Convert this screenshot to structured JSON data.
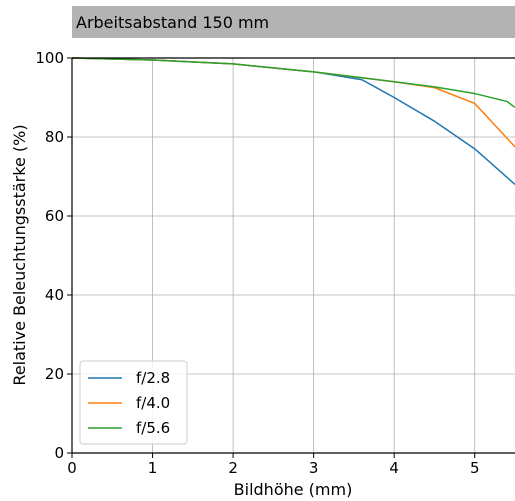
{
  "chart_data": {
    "type": "line",
    "title": "Arbeitsabstand 150 mm",
    "xlabel": "Bildhöhe (mm)",
    "ylabel": "Relative Beleuchtungsstärke (%)",
    "xlim": [
      0,
      5.5
    ],
    "ylim": [
      0,
      100
    ],
    "xticks": [
      0,
      1,
      2,
      3,
      4,
      5
    ],
    "yticks": [
      0,
      20,
      40,
      60,
      80,
      100
    ],
    "grid": true,
    "legend_position": "lower-left",
    "series": [
      {
        "name": "f/2.8",
        "color": "#1f77b4",
        "x": [
          0,
          1,
          2,
          3,
          3.6,
          4,
          4.5,
          5,
          5.5
        ],
        "y": [
          100,
          99.5,
          98.5,
          96.5,
          94.5,
          90,
          84,
          77,
          68
        ]
      },
      {
        "name": "f/4.0",
        "color": "#ff7f0e",
        "x": [
          0,
          1,
          2,
          3,
          3.6,
          4,
          4.5,
          5,
          5.5
        ],
        "y": [
          100,
          99.5,
          98.5,
          96.5,
          95,
          94,
          92.5,
          88.5,
          77.5
        ]
      },
      {
        "name": "f/5.6",
        "color": "#2ca02c",
        "x": [
          0,
          1,
          2,
          3,
          3.6,
          4,
          4.5,
          5,
          5.4,
          5.5
        ],
        "y": [
          100,
          99.5,
          98.5,
          96.5,
          95,
          94,
          92.7,
          91,
          89,
          87.5
        ]
      }
    ]
  }
}
